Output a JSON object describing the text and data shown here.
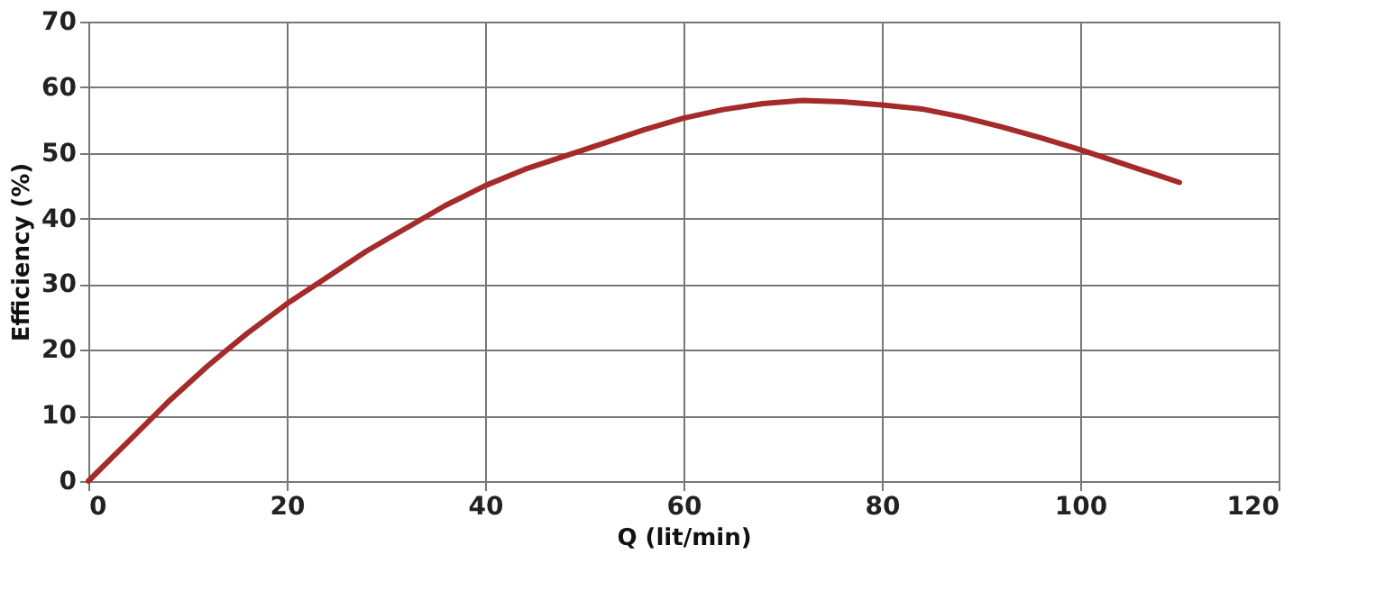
{
  "chart_data": {
    "type": "line",
    "xlabel": "Q (lit/min)",
    "ylabel": "Efficiency (%)",
    "x": [
      0,
      4,
      8,
      12,
      16,
      20,
      24,
      28,
      32,
      36,
      40,
      44,
      48,
      52,
      56,
      60,
      64,
      68,
      72,
      76,
      80,
      84,
      88,
      92,
      96,
      100,
      104,
      108,
      110
    ],
    "series": [
      {
        "color": "#a52a2a",
        "values": [
          0,
          6,
          12,
          17.5,
          22.5,
          27,
          31,
          35,
          38.5,
          42,
          45,
          47.5,
          49.5,
          51.5,
          53.5,
          55.3,
          56.6,
          57.5,
          58,
          57.8,
          57.3,
          56.7,
          55.5,
          54,
          52.3,
          50.5,
          48.5,
          46.5,
          45.5
        ]
      }
    ],
    "xlim": [
      0,
      120
    ],
    "xticks": [
      0,
      20,
      40,
      60,
      80,
      100,
      120
    ],
    "ylim": [
      0,
      70
    ],
    "yticks": [
      0,
      10,
      20,
      30,
      40,
      50,
      60,
      70
    ],
    "grid": true,
    "marker": "none",
    "line_style": "solid"
  }
}
